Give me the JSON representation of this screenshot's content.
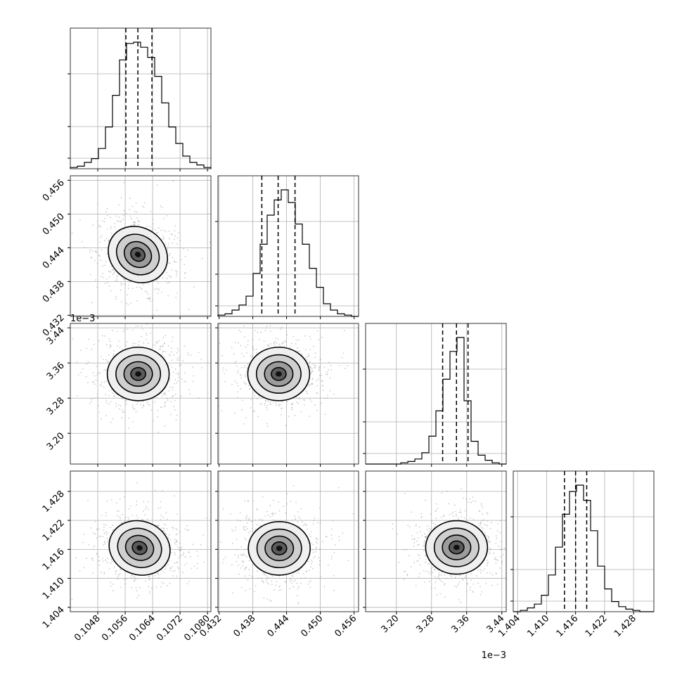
{
  "chart_data": {
    "type": "corner",
    "grid": true,
    "parameters": [
      {
        "ticks": [
          0.1048,
          0.1056,
          0.1064,
          0.1072,
          0.108
        ],
        "tick_labels": [
          "0.1048",
          "0.1056",
          "0.1064",
          "0.1072",
          "0.1080"
        ],
        "range": [
          0.104,
          0.1081
        ],
        "quantiles": [
          0.10562,
          0.10597,
          0.10638
        ],
        "offset_text": ""
      },
      {
        "ticks": [
          0.432,
          0.438,
          0.444,
          0.45,
          0.456
        ],
        "tick_labels": [
          "0.432",
          "0.438",
          "0.444",
          "0.450",
          "0.456"
        ],
        "range": [
          0.4318,
          0.4568
        ],
        "quantiles": [
          0.4396,
          0.4425,
          0.4455
        ],
        "offset_text": ""
      },
      {
        "ticks": [
          3.2,
          3.28,
          3.36,
          3.44
        ],
        "tick_labels": [
          "3.20",
          "3.28",
          "3.36",
          "3.44"
        ],
        "range": [
          3.13,
          3.45
        ],
        "quantiles": [
          3.3053,
          3.3368,
          3.3631
        ],
        "offset_text": "1e−3"
      },
      {
        "ticks": [
          1.404,
          1.41,
          1.416,
          1.422,
          1.428
        ],
        "tick_labels": [
          "1.404",
          "1.410",
          "1.416",
          "1.422",
          "1.428"
        ],
        "range": [
          1.4031,
          1.4322
        ],
        "quantiles": [
          1.4137,
          1.416,
          1.4183
        ],
        "offset_text": ""
      }
    ],
    "histograms": [
      [
        0.01,
        0.02,
        0.05,
        0.08,
        0.16,
        0.33,
        0.58,
        0.86,
        0.99,
        1.0,
        0.96,
        0.88,
        0.73,
        0.52,
        0.33,
        0.2,
        0.1,
        0.05,
        0.03,
        0.01
      ],
      [
        0.01,
        0.02,
        0.05,
        0.09,
        0.16,
        0.34,
        0.57,
        0.8,
        0.92,
        1.0,
        0.9,
        0.73,
        0.57,
        0.38,
        0.23,
        0.1,
        0.05,
        0.02,
        0.01,
        0.0
      ],
      [
        0.0,
        0.0,
        0.0,
        0.0,
        0.0,
        0.01,
        0.02,
        0.04,
        0.09,
        0.22,
        0.42,
        0.67,
        0.89,
        1.0,
        0.5,
        0.18,
        0.07,
        0.03,
        0.01,
        0.0
      ],
      [
        0.0,
        0.01,
        0.03,
        0.06,
        0.13,
        0.29,
        0.51,
        0.77,
        0.95,
        1.0,
        0.88,
        0.64,
        0.36,
        0.18,
        0.08,
        0.04,
        0.02,
        0.01,
        0.0,
        0.0
      ]
    ],
    "pair_peaks": [
      {
        "row": 1,
        "col": 0,
        "x": 0.10597,
        "y": 0.4428
      },
      {
        "row": 2,
        "col": 0,
        "x": 0.10598,
        "y": 3.335
      },
      {
        "row": 2,
        "col": 1,
        "x": 0.4426,
        "y": 3.335
      },
      {
        "row": 3,
        "col": 0,
        "x": 0.10602,
        "y": 1.4163
      },
      {
        "row": 3,
        "col": 1,
        "x": 0.4427,
        "y": 1.4162
      },
      {
        "row": 3,
        "col": 2,
        "x": 3.337,
        "y": 1.4164
      }
    ]
  }
}
